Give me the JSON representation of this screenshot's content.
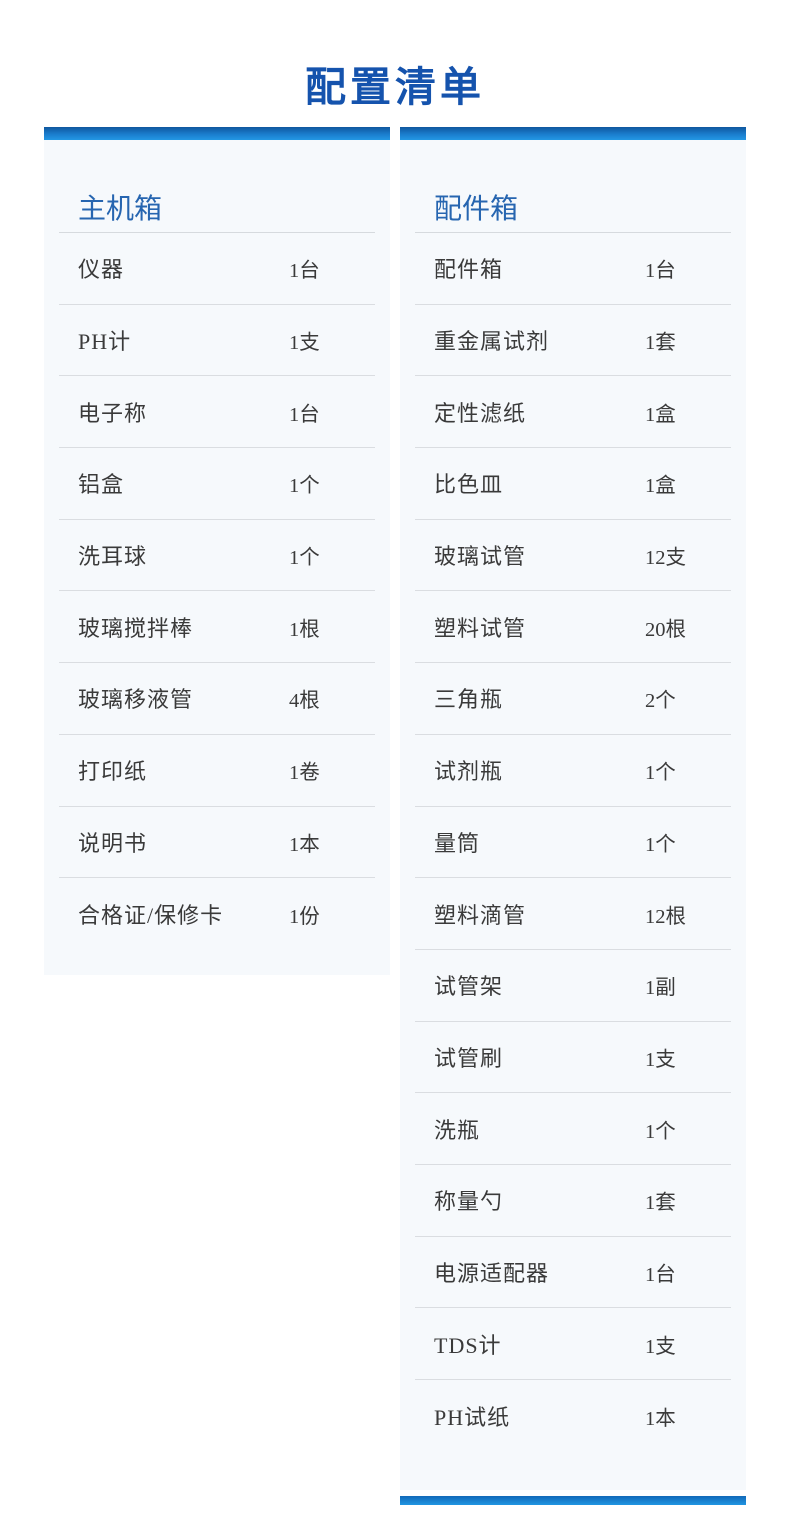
{
  "page": {
    "title": "配置清单"
  },
  "colors": {
    "title_blue": "#1553ad",
    "header_blue": "#2665b0",
    "accent_bar_top": "#0f579f",
    "accent_bar_bottom": "#2397e4",
    "card_background": "#f6f9fc",
    "row_text": "#3a3a3a",
    "divider": "#dadde1"
  },
  "columns": [
    {
      "header": "主机箱",
      "items": [
        {
          "name": "仪器",
          "qty": "1台"
        },
        {
          "name": "PH计",
          "qty": "1支"
        },
        {
          "name": "电子称",
          "qty": "1台"
        },
        {
          "name": "铝盒",
          "qty": "1个"
        },
        {
          "name": "洗耳球",
          "qty": "1个"
        },
        {
          "name": "玻璃搅拌棒",
          "qty": "1根"
        },
        {
          "name": "玻璃移液管",
          "qty": "4根"
        },
        {
          "name": "打印纸",
          "qty": "1卷"
        },
        {
          "name": "说明书",
          "qty": "1本"
        },
        {
          "name": "合格证/保修卡",
          "qty": "1份"
        }
      ]
    },
    {
      "header": "配件箱",
      "items": [
        {
          "name": "配件箱",
          "qty": "1台"
        },
        {
          "name": "重金属试剂",
          "qty": "1套"
        },
        {
          "name": "定性滤纸",
          "qty": "1盒"
        },
        {
          "name": "比色皿",
          "qty": "1盒"
        },
        {
          "name": "玻璃试管",
          "qty": "12支"
        },
        {
          "name": "塑料试管",
          "qty": "20根"
        },
        {
          "name": "三角瓶",
          "qty": "2个"
        },
        {
          "name": "试剂瓶",
          "qty": "1个"
        },
        {
          "name": "量筒",
          "qty": "1个"
        },
        {
          "name": "塑料滴管",
          "qty": "12根"
        },
        {
          "name": "试管架",
          "qty": "1副"
        },
        {
          "name": "试管刷",
          "qty": "1支"
        },
        {
          "name": "洗瓶",
          "qty": "1个"
        },
        {
          "name": "称量勺",
          "qty": "1套"
        },
        {
          "name": "电源适配器",
          "qty": "1台"
        },
        {
          "name": "TDS计",
          "qty": "1支"
        },
        {
          "name": "PH试纸",
          "qty": "1本"
        }
      ]
    }
  ]
}
